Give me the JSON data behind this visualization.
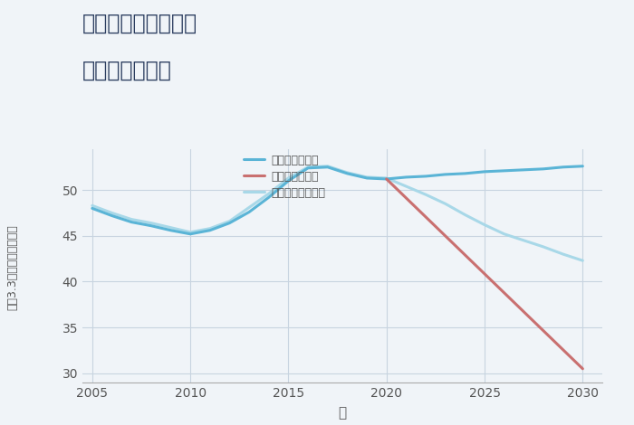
{
  "title_line1": "兵庫県西宮市名塩の",
  "title_line2": "土地の価格推移",
  "xlabel": "年",
  "ylabel": "平（3.3㎡）単価（万円）",
  "background_color": "#f0f4f8",
  "plot_bg_color": "#f0f4f8",
  "grid_color": "#c8d4e0",
  "good_scenario": {
    "label": "グッドシナリオ",
    "color": "#5ab4d6",
    "years": [
      2005,
      2006,
      2007,
      2008,
      2009,
      2010,
      2011,
      2012,
      2013,
      2014,
      2015,
      2016,
      2017,
      2018,
      2019,
      2020,
      2021,
      2022,
      2023,
      2024,
      2025,
      2026,
      2027,
      2028,
      2029,
      2030
    ],
    "values": [
      48.0,
      47.2,
      46.5,
      46.1,
      45.6,
      45.2,
      45.6,
      46.4,
      47.6,
      49.2,
      51.0,
      52.4,
      52.5,
      51.8,
      51.3,
      51.2,
      51.4,
      51.5,
      51.7,
      51.8,
      52.0,
      52.1,
      52.2,
      52.3,
      52.5,
      52.6
    ]
  },
  "bad_scenario": {
    "label": "バッドシナリオ",
    "color": "#c97070",
    "years": [
      2020,
      2030
    ],
    "values": [
      51.2,
      30.5
    ]
  },
  "normal_scenario": {
    "label": "ノーマルシナリオ",
    "color": "#a8d8e8",
    "years": [
      2005,
      2006,
      2007,
      2008,
      2009,
      2010,
      2011,
      2012,
      2013,
      2014,
      2015,
      2016,
      2017,
      2018,
      2019,
      2020,
      2021,
      2022,
      2023,
      2024,
      2025,
      2026,
      2027,
      2028,
      2029,
      2030
    ],
    "values": [
      48.3,
      47.5,
      46.8,
      46.4,
      45.9,
      45.4,
      45.8,
      46.6,
      48.1,
      49.6,
      51.3,
      52.5,
      52.6,
      51.9,
      51.4,
      51.3,
      50.4,
      49.5,
      48.5,
      47.3,
      46.2,
      45.2,
      44.5,
      43.8,
      43.0,
      42.3
    ]
  },
  "ylim": [
    29.0,
    54.5
  ],
  "yticks": [
    30,
    35,
    40,
    45,
    50
  ],
  "xlim": [
    2004.5,
    2031.0
  ],
  "xticks": [
    2005,
    2010,
    2015,
    2020,
    2025,
    2030
  ],
  "line_width": 2.2,
  "title_color": "#2c3e60",
  "tick_color": "#555555",
  "tick_fontsize": 10,
  "xlabel_fontsize": 11,
  "ylabel_fontsize": 9,
  "legend_fontsize": 9,
  "title_fontsize": 17
}
